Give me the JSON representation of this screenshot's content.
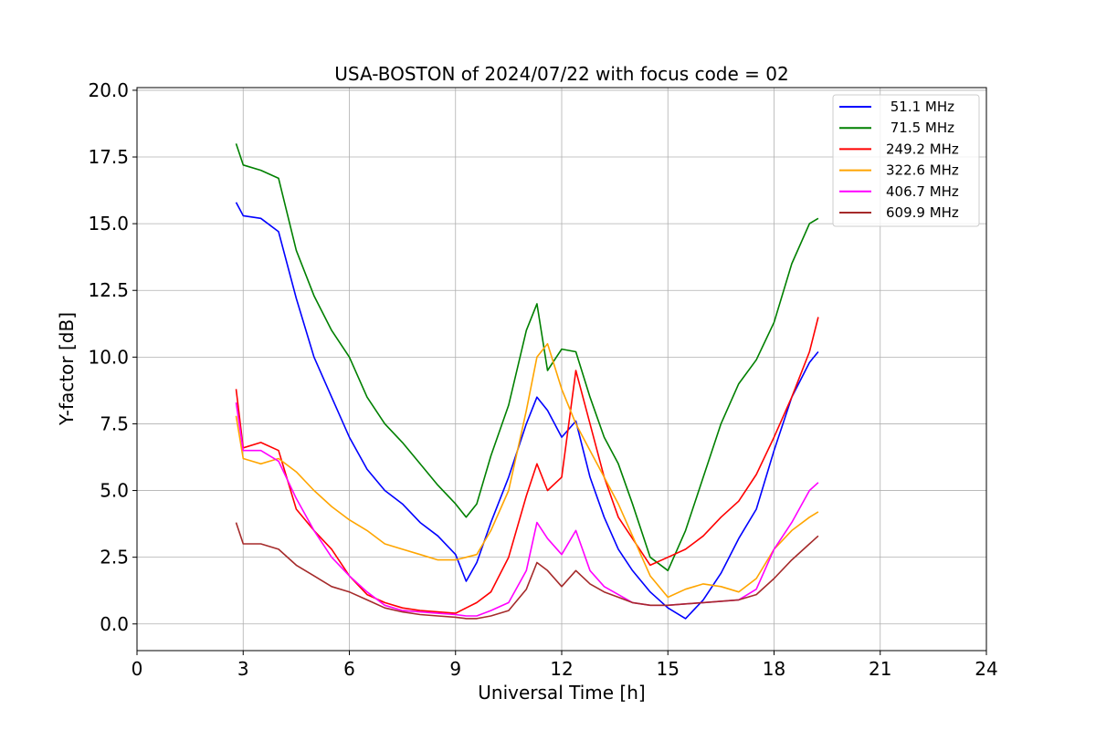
{
  "chart_data": {
    "type": "line",
    "title": "USA-BOSTON of 2024/07/22 with focus code = 02",
    "xlabel": "Universal Time [h]",
    "ylabel": "Y-factor [dB]",
    "xlim": [
      0,
      24
    ],
    "ylim": [
      -1.0,
      20.1
    ],
    "xticks": [
      0,
      3,
      6,
      9,
      12,
      15,
      18,
      21,
      24
    ],
    "xtick_labels": [
      "0",
      "3",
      "6",
      "9",
      "12",
      "15",
      "18",
      "21",
      "24"
    ],
    "yticks": [
      0.0,
      2.5,
      5.0,
      7.5,
      10.0,
      12.5,
      15.0,
      17.5,
      20.0
    ],
    "ytick_labels": [
      "0.0",
      "2.5",
      "5.0",
      "7.5",
      "10.0",
      "12.5",
      "15.0",
      "17.5",
      "20.0"
    ],
    "grid": true,
    "legend_position": "top-right",
    "series": [
      {
        "name": " 51.1 MHz",
        "color": "#0000ff",
        "x": [
          2.8,
          3.0,
          3.5,
          4.0,
          4.5,
          5.0,
          5.5,
          6.0,
          6.5,
          7.0,
          7.5,
          8.0,
          8.5,
          9.0,
          9.3,
          9.6,
          10.0,
          10.5,
          11.0,
          11.3,
          11.6,
          12.0,
          12.4,
          12.8,
          13.2,
          13.6,
          14.0,
          14.5,
          15.0,
          15.5,
          16.0,
          16.5,
          17.0,
          17.5,
          18.0,
          18.5,
          19.0,
          19.25
        ],
        "values": [
          15.8,
          15.3,
          15.2,
          14.7,
          12.2,
          10.0,
          8.5,
          7.0,
          5.8,
          5.0,
          4.5,
          3.8,
          3.3,
          2.6,
          1.6,
          2.3,
          3.8,
          5.5,
          7.5,
          8.5,
          8.0,
          7.0,
          7.6,
          5.5,
          4.0,
          2.8,
          2.0,
          1.2,
          0.6,
          0.2,
          0.9,
          1.9,
          3.2,
          4.3,
          6.5,
          8.5,
          9.8,
          10.2
        ]
      },
      {
        "name": " 71.5 MHz",
        "color": "#008000",
        "x": [
          2.8,
          3.0,
          3.5,
          4.0,
          4.5,
          5.0,
          5.5,
          6.0,
          6.5,
          7.0,
          7.5,
          8.0,
          8.5,
          9.0,
          9.3,
          9.6,
          10.0,
          10.5,
          11.0,
          11.3,
          11.6,
          12.0,
          12.4,
          12.8,
          13.2,
          13.6,
          14.0,
          14.5,
          15.0,
          15.5,
          16.0,
          16.5,
          17.0,
          17.5,
          18.0,
          18.5,
          19.0,
          19.25
        ],
        "values": [
          18.0,
          17.2,
          17.0,
          16.7,
          14.0,
          12.3,
          11.0,
          10.0,
          8.5,
          7.5,
          6.8,
          6.0,
          5.2,
          4.5,
          4.0,
          4.5,
          6.3,
          8.2,
          11.0,
          12.0,
          9.5,
          10.3,
          10.2,
          8.5,
          7.0,
          6.0,
          4.5,
          2.5,
          2.0,
          3.5,
          5.5,
          7.5,
          9.0,
          9.9,
          11.3,
          13.5,
          15.0,
          15.2
        ]
      },
      {
        "name": "249.2 MHz",
        "color": "#ff0000",
        "x": [
          2.8,
          3.0,
          3.5,
          4.0,
          4.5,
          5.0,
          5.5,
          6.0,
          6.5,
          7.0,
          7.5,
          8.0,
          8.5,
          9.0,
          9.3,
          9.6,
          10.0,
          10.5,
          11.0,
          11.3,
          11.6,
          12.0,
          12.4,
          12.8,
          13.2,
          13.6,
          14.0,
          14.5,
          15.0,
          15.5,
          16.0,
          16.5,
          17.0,
          17.5,
          18.0,
          18.5,
          19.0,
          19.25
        ],
        "values": [
          8.8,
          6.6,
          6.8,
          6.5,
          4.3,
          3.5,
          2.8,
          1.8,
          1.1,
          0.8,
          0.6,
          0.5,
          0.45,
          0.4,
          0.6,
          0.8,
          1.2,
          2.5,
          4.8,
          6.0,
          5.0,
          5.5,
          9.5,
          7.5,
          5.5,
          4.0,
          3.2,
          2.2,
          2.5,
          2.8,
          3.3,
          4.0,
          4.6,
          5.6,
          7.0,
          8.5,
          10.2,
          11.5
        ]
      },
      {
        "name": "322.6 MHz",
        "color": "#ffa500",
        "x": [
          2.8,
          3.0,
          3.5,
          4.0,
          4.5,
          5.0,
          5.5,
          6.0,
          6.5,
          7.0,
          7.5,
          8.0,
          8.5,
          9.0,
          9.3,
          9.6,
          10.0,
          10.5,
          11.0,
          11.3,
          11.6,
          12.0,
          12.4,
          12.8,
          13.2,
          13.6,
          14.0,
          14.5,
          15.0,
          15.5,
          16.0,
          16.5,
          17.0,
          17.5,
          18.0,
          18.5,
          19.0,
          19.25
        ],
        "values": [
          7.8,
          6.2,
          6.0,
          6.2,
          5.7,
          5.0,
          4.4,
          3.9,
          3.5,
          3.0,
          2.8,
          2.6,
          2.4,
          2.4,
          2.5,
          2.6,
          3.5,
          5.0,
          8.0,
          10.0,
          10.5,
          8.8,
          7.5,
          6.5,
          5.5,
          4.5,
          3.3,
          1.8,
          1.0,
          1.3,
          1.5,
          1.4,
          1.2,
          1.7,
          2.8,
          3.5,
          4.0,
          4.2
        ]
      },
      {
        "name": "406.7 MHz",
        "color": "#ff00ff",
        "x": [
          2.8,
          3.0,
          3.5,
          4.0,
          4.5,
          5.0,
          5.5,
          6.0,
          6.5,
          7.0,
          7.5,
          8.0,
          8.5,
          9.0,
          9.3,
          9.6,
          10.0,
          10.5,
          11.0,
          11.3,
          11.6,
          12.0,
          12.4,
          12.8,
          13.2,
          13.6,
          14.0,
          14.5,
          15.0,
          15.5,
          16.0,
          16.5,
          17.0,
          17.5,
          18.0,
          18.5,
          19.0,
          19.25
        ],
        "values": [
          8.3,
          6.5,
          6.5,
          6.1,
          4.7,
          3.5,
          2.5,
          1.8,
          1.2,
          0.7,
          0.5,
          0.45,
          0.4,
          0.35,
          0.3,
          0.3,
          0.5,
          0.8,
          2.0,
          3.8,
          3.2,
          2.6,
          3.5,
          2.0,
          1.4,
          1.1,
          0.8,
          0.7,
          0.7,
          0.75,
          0.8,
          0.85,
          0.9,
          1.3,
          2.8,
          3.8,
          5.0,
          5.3
        ]
      },
      {
        "name": "609.9 MHz",
        "color": "#a52a2a",
        "x": [
          2.8,
          3.0,
          3.5,
          4.0,
          4.5,
          5.0,
          5.5,
          6.0,
          6.5,
          7.0,
          7.5,
          8.0,
          8.5,
          9.0,
          9.3,
          9.6,
          10.0,
          10.5,
          11.0,
          11.3,
          11.6,
          12.0,
          12.4,
          12.8,
          13.2,
          13.6,
          14.0,
          14.5,
          15.0,
          15.5,
          16.0,
          16.5,
          17.0,
          17.5,
          18.0,
          18.5,
          19.0,
          19.25
        ],
        "values": [
          3.8,
          3.0,
          3.0,
          2.8,
          2.2,
          1.8,
          1.4,
          1.2,
          0.9,
          0.6,
          0.45,
          0.35,
          0.3,
          0.25,
          0.2,
          0.2,
          0.3,
          0.5,
          1.3,
          2.3,
          2.0,
          1.4,
          2.0,
          1.5,
          1.2,
          1.0,
          0.8,
          0.7,
          0.7,
          0.75,
          0.8,
          0.85,
          0.9,
          1.1,
          1.7,
          2.4,
          3.0,
          3.3
        ]
      }
    ]
  }
}
